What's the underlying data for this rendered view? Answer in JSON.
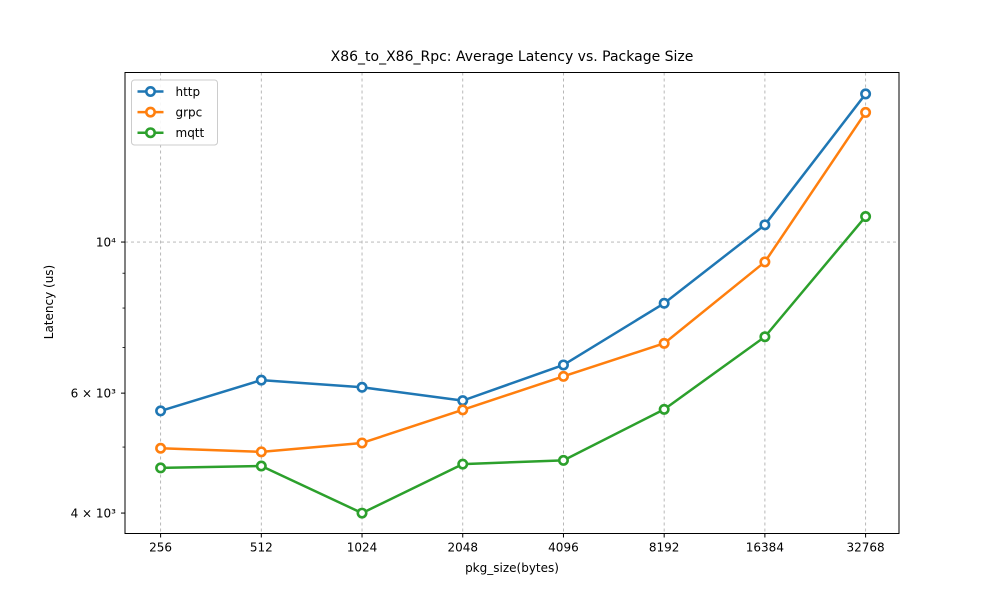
{
  "figure": {
    "background": "#ffffff"
  },
  "chart_data": {
    "type": "line",
    "title": "X86_to_X86_Rpc: Average Latency vs. Package Size",
    "xlabel": "pkg_size(bytes)",
    "ylabel": "Latency (us)",
    "x_categories": [
      "256",
      "512",
      "1024",
      "2048",
      "4096",
      "8192",
      "16384",
      "32768"
    ],
    "series": [
      {
        "name": "http",
        "color": "#1f77b4",
        "values": [
          5650,
          6270,
          6120,
          5850,
          6600,
          8130,
          10600,
          16500
        ]
      },
      {
        "name": "grpc",
        "color": "#ff7f0e",
        "values": [
          4980,
          4920,
          5070,
          5670,
          6350,
          7100,
          9350,
          15500
        ]
      },
      {
        "name": "mqtt",
        "color": "#2ca02c",
        "values": [
          4660,
          4690,
          4000,
          4720,
          4780,
          5680,
          7260,
          10900
        ]
      }
    ],
    "yscale": "log",
    "ylim": [
      3733,
      17740
    ],
    "y_ticks": [
      {
        "value": 4000,
        "label": "4 × 10³"
      },
      {
        "value": 6000,
        "label": "6 × 10³"
      },
      {
        "value": 10000,
        "label": "10⁴"
      }
    ],
    "y_minor_ticks": [
      5000,
      7000,
      8000,
      9000
    ],
    "y_grid_values": [
      10000
    ],
    "grid": {
      "color": "#b0b0b0",
      "style": "dashed"
    },
    "axis_color": "#000000",
    "marker": "circle-open",
    "legend": {
      "position": "upper-left",
      "entries": [
        "http",
        "grpc",
        "mqtt"
      ]
    }
  }
}
